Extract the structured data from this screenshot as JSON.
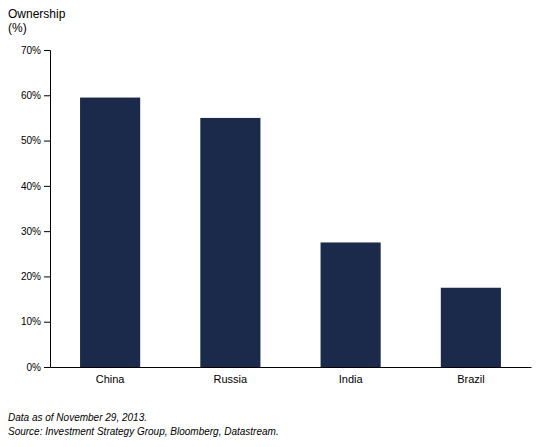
{
  "chart_data": {
    "type": "bar",
    "categories": [
      "China",
      "Russia",
      "India",
      "Brazil"
    ],
    "values": [
      0.595,
      0.55,
      0.275,
      0.175
    ],
    "color": "#1b2a4a",
    "ylim": [
      0,
      0.7
    ],
    "yticks": [
      {
        "value": 0.0,
        "label": "0%"
      },
      {
        "value": 0.1,
        "label": "10%"
      },
      {
        "value": 0.2,
        "label": "20%"
      },
      {
        "value": 0.3,
        "label": "30%"
      },
      {
        "value": 0.4,
        "label": "40%"
      },
      {
        "value": 0.5,
        "label": "50%"
      },
      {
        "value": 0.6,
        "label": "60%"
      },
      {
        "value": 0.7,
        "label": "70%"
      }
    ],
    "y_label": [
      "Ownership",
      "(%)"
    ],
    "annotations": [
      "Data as of November 29, 2013.",
      "Source: Investment Strategy Group, Bloomberg, Datastream."
    ],
    "grid": false
  }
}
